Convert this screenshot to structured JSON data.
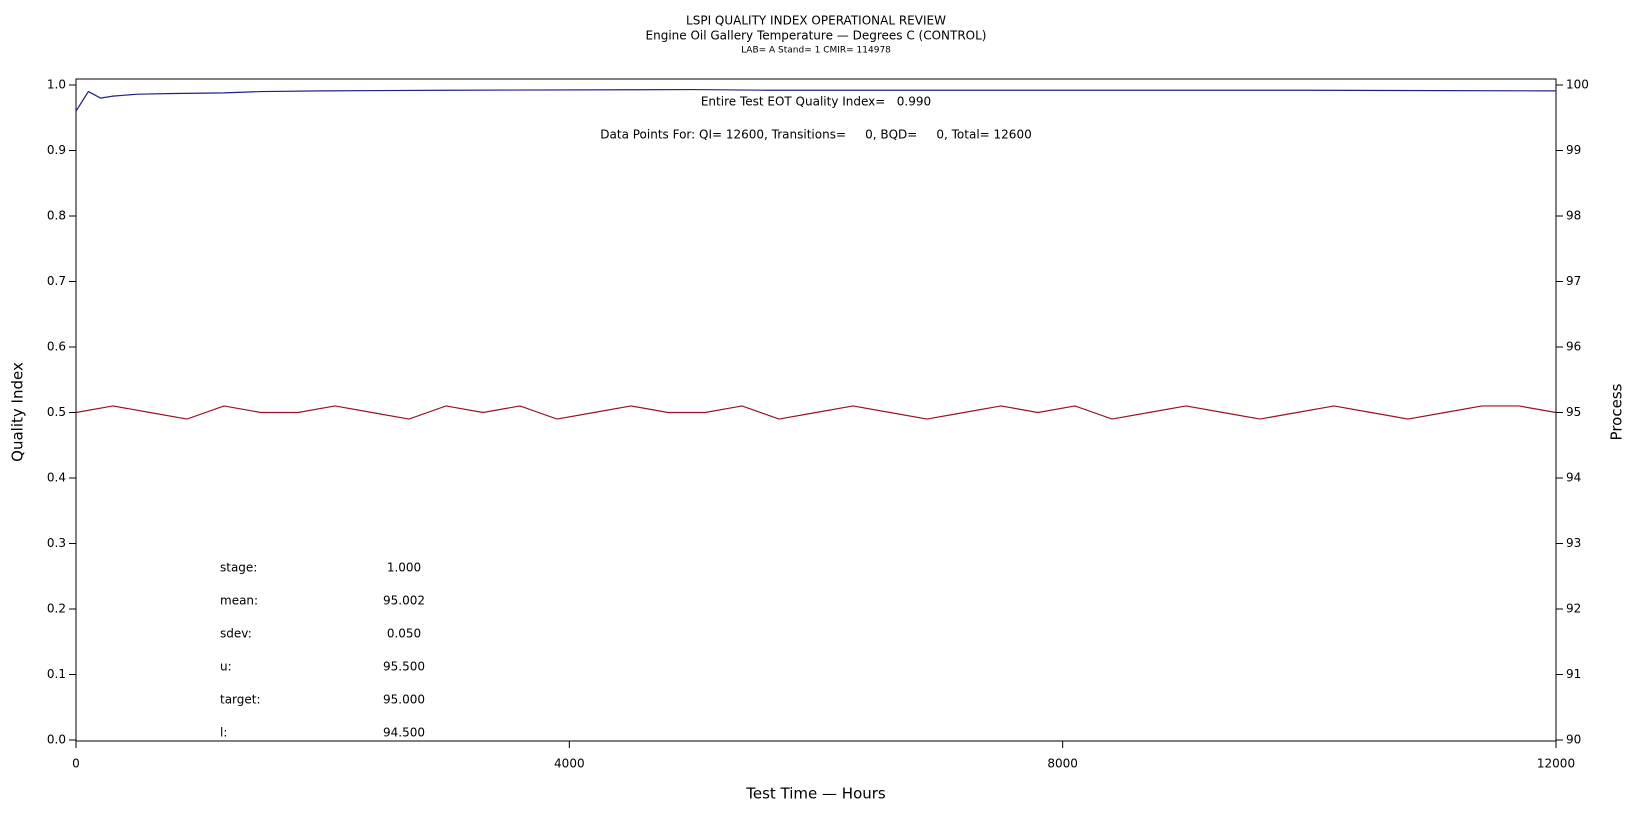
{
  "chart_data": {
    "type": "line",
    "title": "LSPI QUALITY INDEX OPERATIONAL REVIEW",
    "subtitle": "Engine Oil Gallery Temperature — Degrees C (CONTROL)",
    "caption": "LAB= A Stand= 1 CMIR= 114978",
    "annotations": [
      "Entire Test EOT Quality Index=   0.990",
      "Data Points For: QI= 12600, Transitions=     0, BQD=     0, Total= 12600"
    ],
    "stats": [
      {
        "label": "stage:",
        "value": "1.000"
      },
      {
        "label": "mean:",
        "value": "95.002"
      },
      {
        "label": "sdev:",
        "value": "0.050"
      },
      {
        "label": "u:",
        "value": "95.500"
      },
      {
        "label": "target:",
        "value": "95.000"
      },
      {
        "label": "l:",
        "value": "94.500"
      }
    ],
    "xlabel": "Test Time — Hours",
    "ylabel": "Quality Index",
    "y2label": "Process",
    "xlim": [
      0,
      12000
    ],
    "xticks": [
      0,
      4000,
      8000,
      12000
    ],
    "ylim": [
      0,
      1
    ],
    "yticks": [
      {
        "value": 0,
        "label": "0.0"
      },
      0.1,
      0.2,
      0.3,
      0.4,
      0.5,
      0.6,
      0.7,
      0.8,
      0.9,
      {
        "value": 1,
        "label": "1.0"
      }
    ],
    "y2lim": [
      90,
      100
    ],
    "y2ticks": [
      90,
      91,
      92,
      93,
      94,
      95,
      96,
      97,
      98,
      99,
      100
    ],
    "series": [
      {
        "color": "#1f1f8f",
        "x": [
          0,
          50,
          100,
          150,
          200,
          300,
          500,
          800,
          1200,
          1500,
          2000,
          3000,
          5000,
          5600,
          10000,
          12000
        ],
        "values": [
          0.96,
          0.975,
          0.99,
          0.985,
          0.98,
          0.983,
          0.986,
          0.987,
          0.988,
          0.99,
          0.991,
          0.992,
          0.993,
          0.992,
          0.992,
          0.991
        ]
      },
      {
        "color": "#9b1020",
        "axis": "y2",
        "x": [
          0,
          300,
          600,
          900,
          1200,
          1500,
          1800,
          2100,
          2400,
          2700,
          3000,
          3300,
          3600,
          3900,
          4200,
          4500,
          4800,
          5100,
          5400,
          5700,
          6000,
          6300,
          6600,
          6900,
          7200,
          7500,
          7800,
          8100,
          8400,
          8700,
          9000,
          9300,
          9600,
          9900,
          10200,
          10500,
          10800,
          11100,
          11400,
          11700,
          12000
        ],
        "values": [
          95,
          95.1,
          95,
          94.9,
          95.1,
          95,
          95,
          95.1,
          95,
          94.9,
          95.1,
          95,
          95.1,
          94.9,
          95,
          95.1,
          95,
          95,
          95.1,
          94.9,
          95,
          95.1,
          95,
          94.9,
          95,
          95.1,
          95,
          95.1,
          94.9,
          95,
          95.1,
          95,
          94.9,
          95,
          95.1,
          95,
          94.9,
          95,
          95.1,
          95.1,
          95
        ]
      }
    ]
  }
}
